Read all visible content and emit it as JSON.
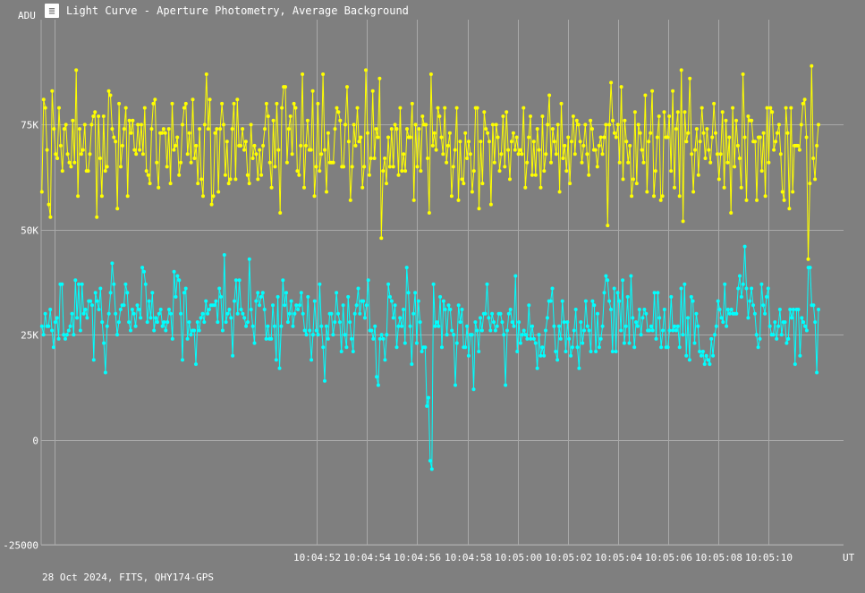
{
  "window": {
    "title": "Light Curve - Aperture Photometry, Average Background",
    "icon": "light-curve-app-icon"
  },
  "footer": {
    "caption": "28 Oct 2024, FITS, QHY174-GPS"
  },
  "colors": {
    "background": "#7f7f7f",
    "grid": "#a9a9a9",
    "text": "#ffffff",
    "series_yellow": "#ffff00",
    "series_cyan": "#00ffff"
  },
  "chart_data": {
    "type": "line",
    "ylabel": "ADU",
    "xlabel": "UT",
    "ylim": [
      -25000,
      100000
    ],
    "yticks": [
      -25000,
      0,
      25000,
      50000,
      75000
    ],
    "ytick_labels": [
      "-25000",
      "0",
      "25K",
      "50K",
      "75K"
    ],
    "xlim_seconds": [
      -21.0,
      11.0
    ],
    "xticks": [
      "10:04:52",
      "10:04:54",
      "10:04:56",
      "10:04:58",
      "10:05:00",
      "10:05:02",
      "10:05:04",
      "10:05:06",
      "10:05:08",
      "10:05:10"
    ],
    "grid": true,
    "legend": "none",
    "series": [
      {
        "color": "#ffff00",
        "values": [
          59000,
          81000,
          79000,
          69000,
          56000,
          53000,
          83000,
          74000,
          68000,
          67000,
          79000,
          70000,
          64000,
          74000,
          75000,
          68000,
          66000,
          65000,
          76000,
          66000,
          88000,
          58000,
          74000,
          68000,
          69000,
          75000,
          64000,
          64000,
          68000,
          75000,
          77000,
          78000,
          53000,
          77000,
          67000,
          58000,
          77000,
          64000,
          65000,
          83000,
          82000,
          74000,
          72000,
          71000,
          55000,
          80000,
          65000,
          70000,
          74000,
          79000,
          58000,
          76000,
          73000,
          76000,
          69000,
          68000,
          75000,
          69000,
          75000,
          68000,
          79000,
          64000,
          63000,
          61000,
          74000,
          80000,
          81000,
          66000,
          60000,
          73000,
          73000,
          74000,
          73000,
          65000,
          74000,
          61000,
          80000,
          69000,
          70000,
          72000,
          63000,
          66000,
          75000,
          79000,
          80000,
          68000,
          73000,
          66000,
          81000,
          67000,
          70000,
          61000,
          74000,
          62000,
          58000,
          75000,
          87000,
          74000,
          81000,
          56000,
          58000,
          73000,
          74000,
          59000,
          74000,
          80000,
          75000,
          63000,
          71000,
          61000,
          62000,
          74000,
          80000,
          62000,
          81000,
          70000,
          70000,
          74000,
          69000,
          71000,
          63000,
          61000,
          75000,
          67000,
          70000,
          68000,
          62000,
          69000,
          63000,
          70000,
          74000,
          80000,
          77000,
          66000,
          60000,
          76000,
          65000,
          80000,
          69000,
          54000,
          79000,
          84000,
          84000,
          66000,
          74000,
          77000,
          68000,
          80000,
          79000,
          64000,
          63000,
          70000,
          87000,
          60000,
          70000,
          76000,
          69000,
          69000,
          83000,
          58000,
          65000,
          80000,
          64000,
          68000,
          87000,
          69000,
          59000,
          73000,
          66000,
          66000,
          66000,
          74000,
          79000,
          78000,
          76000,
          65000,
          65000,
          75000,
          84000,
          71000,
          57000,
          65000,
          75000,
          70000,
          79000,
          71000,
          72000,
          60000,
          65000,
          88000,
          73000,
          63000,
          67000,
          83000,
          67000,
          74000,
          72000,
          86000,
          48000,
          64000,
          67000,
          61000,
          72000,
          65000,
          74000,
          65000,
          75000,
          74000,
          63000,
          79000,
          64000,
          68000,
          64000,
          74000,
          72000,
          72000,
          80000,
          57000,
          75000,
          65000,
          74000,
          64000,
          77000,
          75000,
          75000,
          67000,
          54000,
          87000,
          70000,
          73000,
          69000,
          79000,
          77000,
          72000,
          68000,
          79000,
          66000,
          70000,
          73000,
          58000,
          65000,
          69000,
          79000,
          57000,
          71000,
          62000,
          61000,
          73000,
          67000,
          71000,
          68000,
          59000,
          64000,
          79000,
          79000,
          55000,
          71000,
          61000,
          78000,
          74000,
          73000,
          71000,
          56000,
          75000,
          66000,
          75000,
          72000,
          64000,
          68000,
          77000,
          65000,
          78000,
          69000,
          62000,
          71000,
          73000,
          69000,
          72000,
          68000,
          69000,
          68000,
          79000,
          60000,
          66000,
          72000,
          77000,
          63000,
          71000,
          63000,
          74000,
          69000,
          60000,
          77000,
          64000,
          68000,
          75000,
          82000,
          66000,
          74000,
          71000,
          68000,
          75000,
          59000,
          80000,
          67000,
          70000,
          64000,
          72000,
          61000,
          71000,
          77000,
          68000,
          76000,
          75000,
          71000,
          66000,
          70000,
          75000,
          68000,
          63000,
          76000,
          74000,
          69000,
          69000,
          65000,
          70000,
          72000,
          68000,
          72000,
          75000,
          51000,
          75000,
          85000,
          76000,
          73000,
          72000,
          75000,
          66000,
          84000,
          62000,
          76000,
          71000,
          66000,
          70000,
          58000,
          62000,
          78000,
          61000,
          75000,
          73000,
          69000,
          66000,
          82000,
          59000,
          71000,
          73000,
          83000,
          58000,
          64000,
          72000,
          77000,
          57000,
          58000,
          78000,
          72000,
          72000,
          77000,
          64000,
          83000,
          60000,
          74000,
          78000,
          58000,
          88000,
          52000,
          78000,
          71000,
          73000,
          86000,
          68000,
          59000,
          69000,
          74000,
          63000,
          71000,
          79000,
          73000,
          67000,
          74000,
          69000,
          66000,
          72000,
          80000,
          73000,
          68000,
          62000,
          68000,
          78000,
          60000,
          76000,
          66000,
          72000,
          54000,
          79000,
          65000,
          76000,
          70000,
          67000,
          60000,
          87000,
          72000,
          57000,
          77000,
          76000,
          76000,
          71000,
          71000,
          57000,
          72000,
          72000,
          64000,
          73000,
          58000,
          79000,
          66000,
          79000,
          78000,
          69000,
          71000,
          73000,
          75000,
          68000,
          59000,
          57000,
          79000,
          73000,
          55000,
          79000,
          59000,
          70000,
          70000,
          70000,
          69000,
          75000,
          80000,
          81000,
          72000,
          43000,
          61000,
          89000,
          67000,
          62000,
          70000,
          75000
        ]
      },
      {
        "color": "#00ffff",
        "values": [
          27000,
          25000,
          30000,
          27000,
          27000,
          31000,
          26000,
          22000,
          28000,
          29000,
          24000,
          37000,
          37000,
          25000,
          24000,
          25000,
          26000,
          27000,
          30000,
          25000,
          38000,
          29000,
          37000,
          26000,
          37000,
          30000,
          31000,
          29000,
          33000,
          33000,
          32000,
          19000,
          35000,
          33000,
          31000,
          36000,
          28000,
          23000,
          16000,
          27000,
          30000,
          35000,
          42000,
          37000,
          30000,
          25000,
          28000,
          31000,
          32000,
          32000,
          37000,
          35000,
          28000,
          26000,
          31000,
          30000,
          27000,
          32000,
          31000,
          29000,
          41000,
          40000,
          37000,
          28000,
          33000,
          29000,
          35000,
          26000,
          29000,
          28000,
          30000,
          31000,
          27000,
          28000,
          26000,
          28000,
          31000,
          30000,
          24000,
          40000,
          34000,
          39000,
          38000,
          30000,
          19000,
          35000,
          36000,
          24000,
          28000,
          25000,
          26000,
          26000,
          18000,
          28000,
          26000,
          29000,
          30000,
          28000,
          33000,
          30000,
          31000,
          32000,
          32000,
          32000,
          33000,
          28000,
          36000,
          34000,
          26000,
          44000,
          28000,
          30000,
          31000,
          29000,
          20000,
          33000,
          38000,
          30000,
          38000,
          31000,
          30000,
          29000,
          27000,
          28000,
          43000,
          31000,
          27000,
          23000,
          33000,
          35000,
          32000,
          34000,
          35000,
          31000,
          24000,
          27000,
          24000,
          24000,
          32000,
          27000,
          19000,
          34000,
          17000,
          27000,
          38000,
          32000,
          35000,
          28000,
          30000,
          33000,
          27000,
          30000,
          32000,
          31000,
          32000,
          35000,
          30000,
          26000,
          25000,
          34000,
          26000,
          19000,
          25000,
          33000,
          26000,
          25000,
          37000,
          27000,
          22000,
          14000,
          27000,
          24000,
          30000,
          30000,
          25000,
          28000,
          35000,
          30000,
          28000,
          21000,
          32000,
          25000,
          22000,
          34000,
          28000,
          24000,
          21000,
          30000,
          32000,
          36000,
          30000,
          33000,
          33000,
          29000,
          32000,
          38000,
          26000,
          26000,
          24000,
          27000,
          15000,
          13000,
          24000,
          25000,
          24000,
          19000,
          25000,
          37000,
          34000,
          33000,
          29000,
          32000,
          22000,
          27000,
          29000,
          27000,
          31000,
          23000,
          41000,
          35000,
          27000,
          18000,
          30000,
          35000,
          23000,
          33000,
          28000,
          21000,
          22000,
          22000,
          8000,
          10000,
          -5000,
          -7000,
          37000,
          27000,
          28000,
          27000,
          34000,
          22000,
          33000,
          31000,
          25000,
          32000,
          31000,
          26000,
          25000,
          13000,
          23000,
          32000,
          28000,
          31000,
          22000,
          22000,
          27000,
          20000,
          25000,
          25000,
          12000,
          28000,
          26000,
          21000,
          29000,
          26000,
          30000,
          30000,
          37000,
          29000,
          26000,
          30000,
          28000,
          26000,
          27000,
          30000,
          30000,
          28000,
          25000,
          13000,
          26000,
          30000,
          31000,
          28000,
          27000,
          39000,
          21000,
          28000,
          23000,
          25000,
          26000,
          25000,
          24000,
          32000,
          24000,
          27000,
          24000,
          23000,
          17000,
          25000,
          20000,
          22000,
          20000,
          26000,
          29000,
          33000,
          33000,
          36000,
          27000,
          21000,
          19000,
          27000,
          24000,
          33000,
          28000,
          21000,
          28000,
          24000,
          20000,
          22000,
          26000,
          31000,
          22000,
          17000,
          28000,
          23000,
          26000,
          33000,
          27000,
          26000,
          21000,
          33000,
          32000,
          21000,
          30000,
          22000,
          24000,
          27000,
          35000,
          39000,
          38000,
          33000,
          31000,
          21000,
          36000,
          21000,
          35000,
          33000,
          26000,
          38000,
          23000,
          27000,
          34000,
          23000,
          39000,
          29000,
          22000,
          28000,
          27000,
          31000,
          25000,
          29000,
          31000,
          30000,
          26000,
          26000,
          27000,
          26000,
          35000,
          24000,
          35000,
          29000,
          22000,
          26000,
          31000,
          22000,
          22000,
          26000,
          34000,
          26000,
          27000,
          26000,
          27000,
          22000,
          36000,
          25000,
          37000,
          20000,
          29000,
          19000,
          34000,
          33000,
          23000,
          30000,
          27000,
          21000,
          20000,
          21000,
          18000,
          20000,
          19000,
          18000,
          24000,
          20000,
          25000,
          27000,
          33000,
          31000,
          29000,
          28000,
          37000,
          27000,
          31000,
          30000,
          31000,
          30000,
          30000,
          30000,
          36000,
          39000,
          34000,
          37000,
          46000,
          36000,
          29000,
          33000,
          36000,
          32000,
          30000,
          25000,
          22000,
          24000,
          37000,
          32000,
          30000,
          34000,
          36000,
          27000,
          25000,
          25000,
          28000,
          24000,
          27000,
          31000,
          25000,
          28000,
          28000,
          23000,
          24000,
          31000,
          29000,
          31000,
          18000,
          31000,
          31000,
          20000,
          29000,
          28000,
          27000,
          26000,
          41000,
          41000,
          32000,
          32000,
          28000,
          16000,
          31000
        ]
      }
    ]
  }
}
